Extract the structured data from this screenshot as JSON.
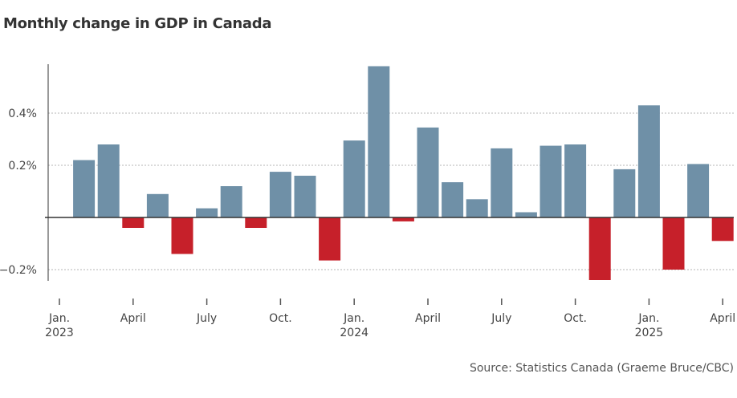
{
  "title": "Monthly change in GDP in Canada",
  "source": "Source: Statistics Canada (Graeme Bruce/CBC)",
  "colors": {
    "positive": "#6f90a7",
    "negative": "#c6202a",
    "grid": "#b5b5b5",
    "axis": "#555555"
  },
  "chart_data": {
    "type": "bar",
    "title": "Monthly change in GDP in Canada",
    "xlabel": "",
    "ylabel": "",
    "ylim": [
      -0.24,
      0.58
    ],
    "grid": true,
    "y_ticks": [
      {
        "value": 0.4,
        "label": "0.4%"
      },
      {
        "value": 0.2,
        "label": "0.2%"
      },
      {
        "value": -0.2,
        "label": "−0.2%"
      }
    ],
    "x_ticks": [
      {
        "index": 0,
        "label": "Jan.",
        "sub": "2023"
      },
      {
        "index": 3,
        "label": "April",
        "sub": ""
      },
      {
        "index": 6,
        "label": "July",
        "sub": ""
      },
      {
        "index": 9,
        "label": "Oct.",
        "sub": ""
      },
      {
        "index": 12,
        "label": "Jan.",
        "sub": "2024"
      },
      {
        "index": 15,
        "label": "April",
        "sub": ""
      },
      {
        "index": 18,
        "label": "July",
        "sub": ""
      },
      {
        "index": 21,
        "label": "Oct.",
        "sub": ""
      },
      {
        "index": 24,
        "label": "Jan.",
        "sub": "2025"
      },
      {
        "index": 27,
        "label": "April",
        "sub": ""
      }
    ],
    "categories": [
      "2023-01",
      "2023-02",
      "2023-03",
      "2023-04",
      "2023-05",
      "2023-06",
      "2023-07",
      "2023-08",
      "2023-09",
      "2023-10",
      "2023-11",
      "2023-12",
      "2024-01",
      "2024-02",
      "2024-03",
      "2024-04",
      "2024-05",
      "2024-06",
      "2024-07",
      "2024-08",
      "2024-09",
      "2024-10",
      "2024-11",
      "2024-12",
      "2025-01",
      "2025-02",
      "2025-03",
      "2025-04"
    ],
    "values": [
      0.0,
      0.22,
      0.28,
      -0.04,
      0.09,
      -0.14,
      0.035,
      0.12,
      -0.04,
      0.175,
      0.16,
      -0.165,
      0.295,
      0.58,
      -0.015,
      0.345,
      0.135,
      0.07,
      0.265,
      0.02,
      0.275,
      0.28,
      -0.24,
      0.185,
      0.43,
      -0.2,
      0.205,
      -0.09
    ]
  }
}
